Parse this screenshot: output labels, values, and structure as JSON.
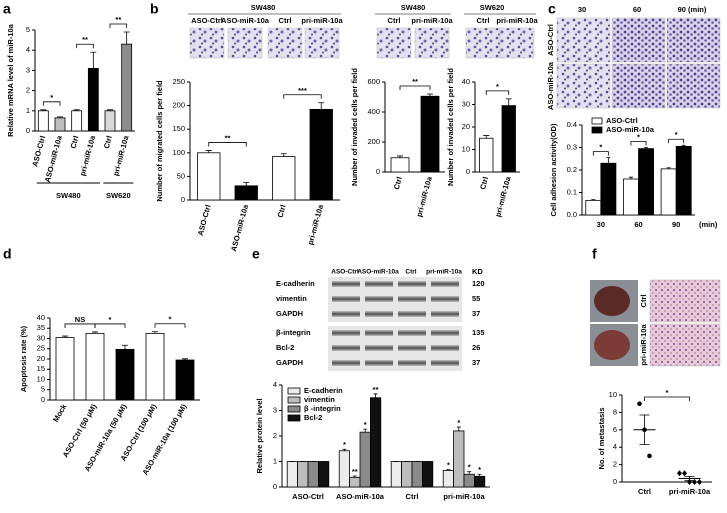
{
  "chart_data": [
    {
      "type": "bar",
      "panel": "a",
      "y_label": "Relative mRNA level of miR-10a",
      "categories": [
        "ASO-Ctrl",
        "ASO-miR-10a",
        "Ctrl",
        "pri-miR-10a",
        "Ctrl",
        "pri-miR-10a"
      ],
      "values": [
        1,
        0.65,
        1,
        3.1,
        1,
        4.3
      ],
      "errors": [
        0.05,
        0.05,
        0.05,
        0.8,
        0.05,
        0.6
      ],
      "colors": [
        "#ffffff",
        "#bdbdbd",
        "#ffffff",
        "#000000",
        "#d9d9d9",
        "#8c8c8c"
      ],
      "groups": [
        "SW480",
        "SW620"
      ],
      "annotations": [
        "*",
        "**",
        "**"
      ],
      "ylim": [
        0,
        5
      ],
      "yticks": [
        0,
        1,
        2,
        3,
        4,
        5
      ]
    },
    {
      "type": "bar",
      "panel": "b",
      "header": "SW480",
      "image_labels": [
        "ASO-Ctrl",
        "ASO-miR-10a",
        "Ctrl",
        "pri-miR-10a"
      ],
      "y_label": "Number of migrated cells per field",
      "categories": [
        "ASO-Ctrl",
        "ASO-miR-10a",
        "Ctrl",
        "pri-miR-10a"
      ],
      "values": [
        100,
        30,
        92,
        192
      ],
      "errors": [
        5,
        7,
        6,
        14
      ],
      "colors": [
        "#ffffff",
        "#000000",
        "#ffffff",
        "#000000"
      ],
      "annotations": [
        "**",
        "***"
      ],
      "ylim": [
        0,
        250
      ],
      "yticks": [
        0,
        50,
        100,
        150,
        200,
        250
      ]
    },
    {
      "type": "bar",
      "header": "SW480",
      "image_labels": [
        "Ctrl",
        "pri-miR-10a"
      ],
      "y_label": "Number of invaded cells per field",
      "categories": [
        "Ctrl",
        "pri-miR-10a"
      ],
      "values": [
        95,
        505
      ],
      "errors": [
        12,
        15
      ],
      "colors": [
        "#ffffff",
        "#000000"
      ],
      "annotations": [
        "**"
      ],
      "ylim": [
        0,
        600
      ],
      "yticks": [
        0,
        200,
        400,
        600
      ]
    },
    {
      "type": "bar",
      "header": "SW620",
      "image_labels": [
        "Ctrl",
        "pri-miR-10a"
      ],
      "y_label": "Number of invaded cells per field",
      "categories": [
        "Ctrl",
        "pri-miR-10a"
      ],
      "values": [
        15,
        29.5
      ],
      "errors": [
        1.2,
        3
      ],
      "colors": [
        "#ffffff",
        "#000000"
      ],
      "annotations": [
        "*"
      ],
      "ylim": [
        0,
        40
      ],
      "yticks": [
        0,
        10,
        20,
        30,
        40
      ]
    },
    {
      "type": "grouped-bar",
      "panel": "c",
      "image_columns": [
        "30",
        "60",
        "90 (min)"
      ],
      "image_rows": [
        "ASO-Ctrl",
        "ASO-miR-10a"
      ],
      "y_label": "Cell adhesion activity(OD)",
      "x_label": "(min)",
      "categories": [
        "30",
        "60",
        "90"
      ],
      "series": [
        {
          "name": "ASO-Ctrl",
          "color": "#ffffff",
          "values": [
            0.065,
            0.16,
            0.205
          ],
          "errors": [
            0.003,
            0.008,
            0.005
          ]
        },
        {
          "name": "ASO-miR-10a",
          "color": "#000000",
          "values": [
            0.23,
            0.295,
            0.305
          ],
          "errors": [
            0.025,
            0.005,
            0.005
          ]
        }
      ],
      "annotations": [
        "*",
        "*",
        "*"
      ],
      "ylim": [
        0,
        0.4
      ],
      "yticks": [
        {
          "value": 0,
          "label": "0.0"
        },
        0.1,
        0.2,
        0.3,
        0.4
      ]
    },
    {
      "type": "bar",
      "panel": "d",
      "y_label": "Apoptosis rate (%)",
      "categories": [
        "Mock",
        "ASO-Ctrl (50 μM)",
        "ASO-miR-10a (50 μM)",
        "ASO-Ctrl (100 μM)",
        "ASO-miR-10a (100 μM)"
      ],
      "values": [
        30.5,
        32.5,
        24.7,
        32.5,
        19.5
      ],
      "errors": [
        0.7,
        0.7,
        2,
        0.8,
        0.6
      ],
      "colors": [
        "#ffffff",
        "#ffffff",
        "#000000",
        "#ffffff",
        "#000000"
      ],
      "annotations": [
        "NS",
        "*",
        "*"
      ],
      "ylim": [
        0,
        40
      ],
      "yticks": [
        0,
        5,
        10,
        15,
        20,
        25,
        30,
        35,
        40
      ]
    },
    {
      "type": "grouped-bar",
      "panel": "e",
      "blot": {
        "columns": [
          "ASO-Ctrl",
          "ASO-miR-10a",
          "Ctrl",
          "pri-miR-10a"
        ],
        "unit": "KD",
        "rows": [
          {
            "name": "E-cadherin",
            "size": 120
          },
          {
            "name": "vimentin",
            "size": 55
          },
          {
            "name": "GAPDH",
            "size": 37
          },
          {
            "name": "β-integrin",
            "size": 135
          },
          {
            "name": "Bcl-2",
            "size": 26
          },
          {
            "name": "GAPDH",
            "size": 37
          }
        ]
      },
      "y_label": "Relative protein level",
      "categories": [
        "ASO-Ctrl",
        "ASO-miR-10a",
        "Ctrl",
        "pri-miR-10a"
      ],
      "series": [
        {
          "name": "E-cadherin",
          "color": "#ebebeb",
          "values": [
            1,
            1.42,
            1,
            0.65
          ],
          "errors": [
            0,
            0.06,
            0,
            0.03
          ]
        },
        {
          "name": "vimentin",
          "color": "#bdbdbd",
          "values": [
            1,
            0.38,
            1,
            2.2
          ],
          "errors": [
            0,
            0.05,
            0,
            0.15
          ]
        },
        {
          "name": "β -integrin",
          "color": "#8a8a8a",
          "values": [
            1,
            2.15,
            1,
            0.5
          ],
          "errors": [
            0,
            0.12,
            0,
            0.1
          ]
        },
        {
          "name": "Bcl-2",
          "color": "#111111",
          "values": [
            1,
            3.5,
            1,
            0.42
          ],
          "errors": [
            0,
            0.15,
            0,
            0.08
          ]
        }
      ],
      "annotations": [
        "*",
        "**",
        "*",
        "**",
        "*",
        "*",
        "*",
        "*"
      ],
      "ylim": [
        0,
        4
      ],
      "yticks": [
        0,
        1,
        2,
        3,
        4
      ]
    },
    {
      "type": "dotplot",
      "panel": "f",
      "image_rows": [
        "Ctrl",
        "pri-miR-10a"
      ],
      "y_label": "No. of metastasis",
      "categories": [
        "Ctrl",
        "pri-miR-10a"
      ],
      "values": [
        [
          9,
          6,
          3
        ],
        [
          1,
          1,
          0,
          0,
          0
        ]
      ],
      "means": [
        6,
        0.4
      ],
      "errors": [
        1.7,
        0.25
      ],
      "annotations": [
        "*"
      ],
      "ylim": [
        0,
        10
      ],
      "yticks": [
        0,
        2,
        4,
        6,
        8,
        10
      ]
    }
  ]
}
